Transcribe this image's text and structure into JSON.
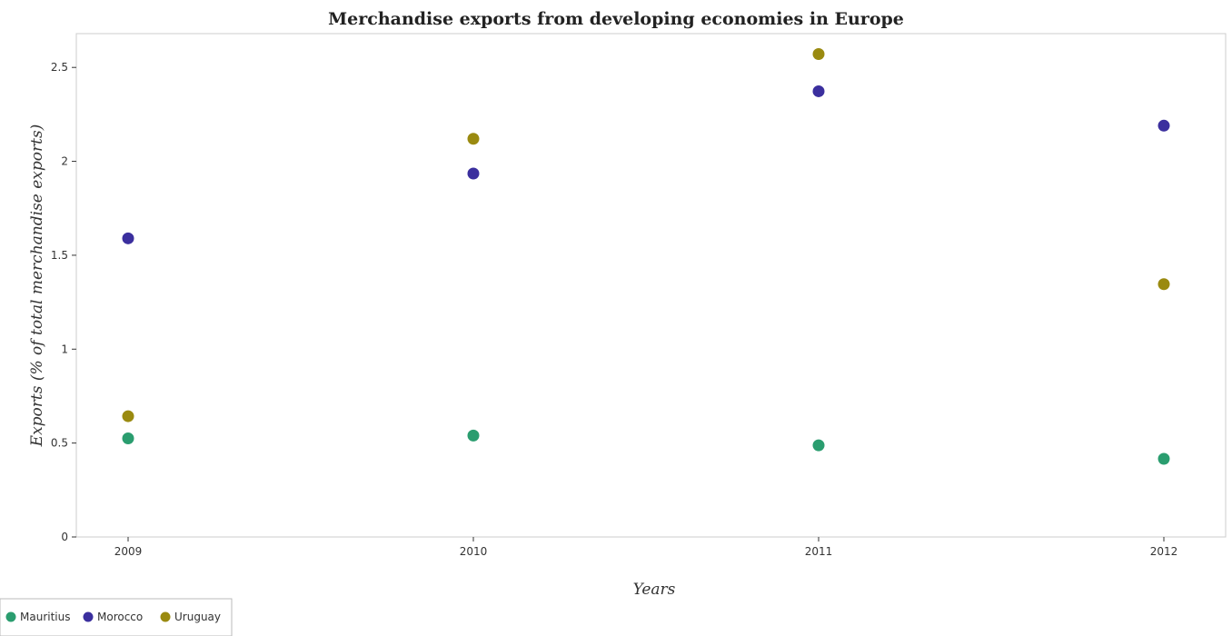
{
  "chart_data": {
    "type": "scatter",
    "title": "Merchandise exports from developing economies in Europe",
    "xlabel": "Years",
    "ylabel": "Exports (% of total merchandise exports)",
    "categories": [
      "2009",
      "2010",
      "2011",
      "2012"
    ],
    "ylim": [
      0,
      2.68
    ],
    "yticks": [
      0,
      0.5,
      1,
      1.5,
      2,
      2.5
    ],
    "ytick_labels": [
      "0",
      "0.5",
      "1",
      "1.5",
      "2",
      "2.5"
    ],
    "grid": false,
    "legend_position": "bottom-left",
    "series": [
      {
        "name": "Mauritius",
        "color": "#2a9d6f",
        "values": [
          0.525,
          0.54,
          0.488,
          0.416
        ]
      },
      {
        "name": "Morocco",
        "color": "#3b2f9e",
        "values": [
          1.59,
          1.935,
          2.373,
          2.19
        ]
      },
      {
        "name": "Uruguay",
        "color": "#9a8a10",
        "values": [
          0.643,
          2.12,
          2.571,
          1.346
        ]
      }
    ]
  }
}
